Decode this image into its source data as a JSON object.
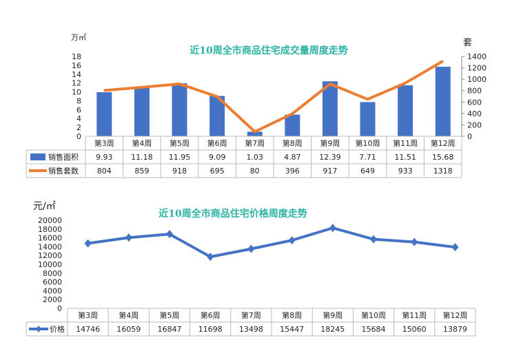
{
  "colors": {
    "bar": "#4472c4",
    "line": "#ed7d31",
    "price": "#4472c4",
    "title": "#2bb3a3"
  },
  "chart_data": [
    {
      "type": "bar",
      "title": "近10周全市商品住宅成交量周度走势",
      "ylabel": "万㎡",
      "y2label": "套",
      "ylim": [
        0,
        18
      ],
      "y2lim": [
        0,
        1400
      ],
      "yticks": [
        "0",
        "2",
        "4",
        "6",
        "8",
        "10",
        "12",
        "14",
        "16",
        "18"
      ],
      "y2ticks": [
        "0",
        "200",
        "400",
        "600",
        "800",
        "1000",
        "1200",
        "1400"
      ],
      "categories": [
        "第3周",
        "第4周",
        "第5周",
        "第6周",
        "第7周",
        "第8周",
        "第9周",
        "第10周",
        "第11周",
        "第12周"
      ],
      "series": [
        {
          "name": "销售面积",
          "kind": "bar",
          "axis": "left",
          "values": [
            9.93,
            11.18,
            11.95,
            9.09,
            1.03,
            4.87,
            12.39,
            7.71,
            11.51,
            15.68
          ]
        },
        {
          "name": "销售套数",
          "kind": "line",
          "axis": "right",
          "values": [
            804,
            859,
            918,
            695,
            80,
            396,
            917,
            649,
            933,
            1318
          ]
        }
      ],
      "legend": "data-table"
    },
    {
      "type": "line",
      "title": "近10周全市商品住宅价格周度走势",
      "ylabel": "元/㎡",
      "ylim": [
        0,
        20000
      ],
      "yticks": [
        "0",
        "2000",
        "4000",
        "6000",
        "8000",
        "10000",
        "12000",
        "14000",
        "16000",
        "18000",
        "20000"
      ],
      "categories": [
        "第3周",
        "第4周",
        "第5周",
        "第6周",
        "第7周",
        "第8周",
        "第9周",
        "第10周",
        "第11周",
        "第12周"
      ],
      "series": [
        {
          "name": "价格",
          "values": [
            14746,
            16059,
            16847,
            11698,
            13498,
            15447,
            18245,
            15684,
            15060,
            13879
          ]
        }
      ],
      "legend": "data-table"
    }
  ]
}
